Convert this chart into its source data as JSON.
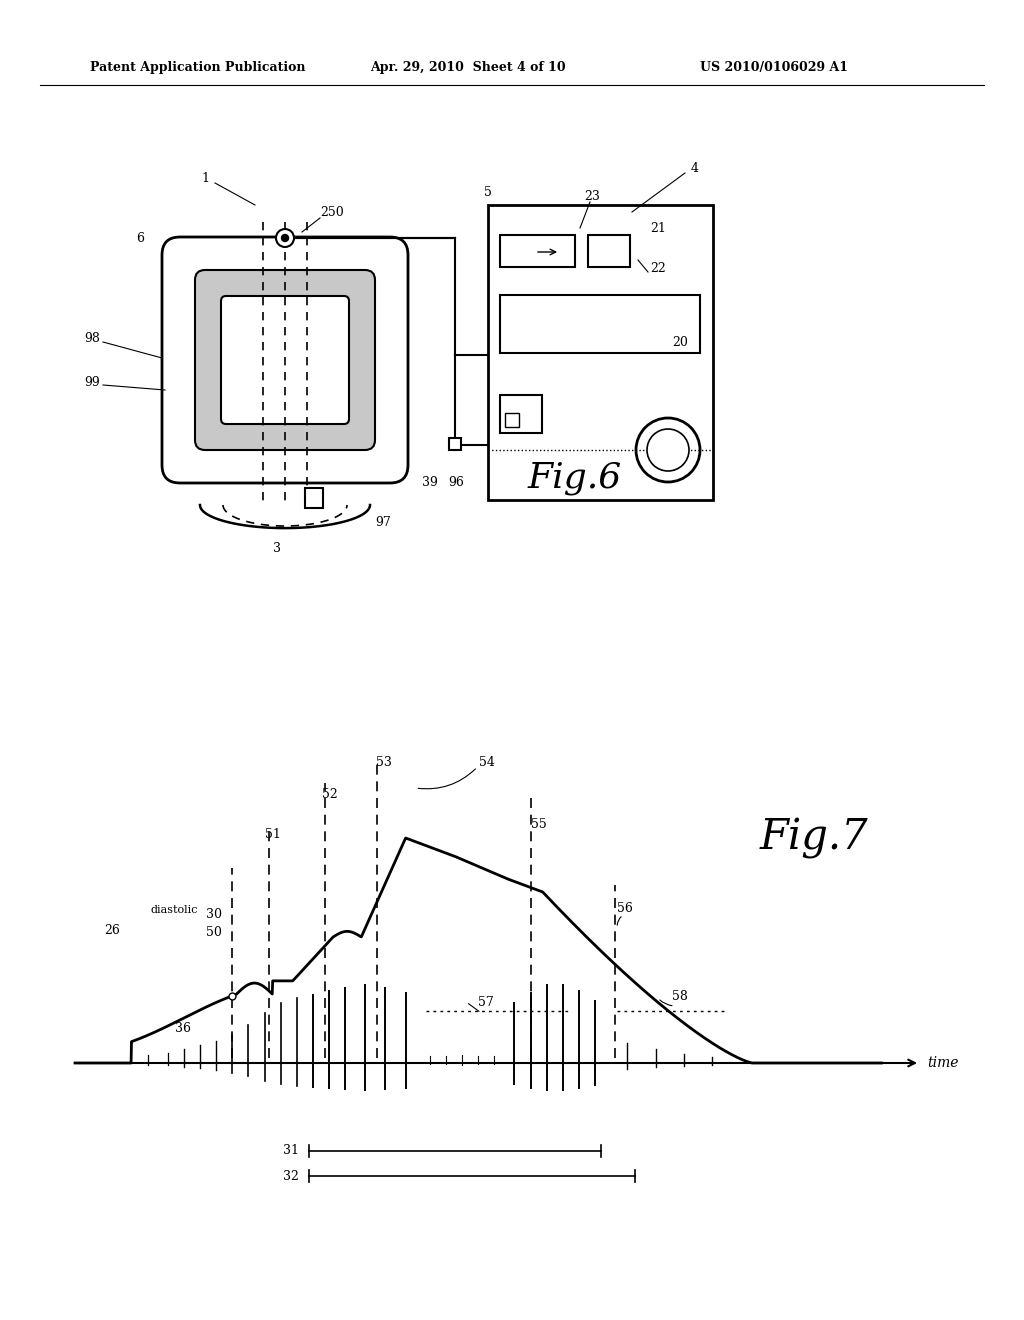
{
  "bg_color": "#ffffff",
  "header_left": "Patent Application Publication",
  "header_center": "Apr. 29, 2010  Sheet 4 of 10",
  "header_right": "US 2010/0106029 A1",
  "fig6_label": "Fig.6",
  "fig7_label": "Fig.7",
  "fig6_numbers": [
    "1",
    "6",
    "3",
    "98",
    "99",
    "250",
    "5",
    "4",
    "23",
    "21",
    "22",
    "20",
    "39",
    "96",
    "97"
  ],
  "fig7_numbers": [
    "26",
    "36",
    "50",
    "30",
    "51",
    "52",
    "53",
    "54",
    "55",
    "56",
    "57",
    "58",
    "31",
    "32",
    "diastolic",
    "time"
  ]
}
